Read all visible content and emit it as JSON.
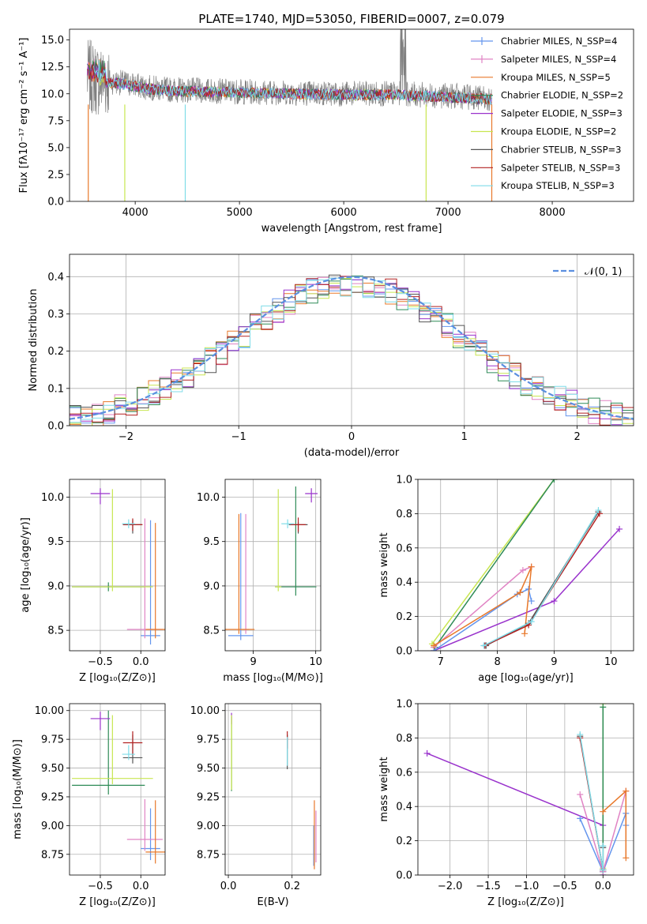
{
  "colors": {
    "chabrier_miles": "#6495ED",
    "salpeter_miles": "#E083C4",
    "kroupa_miles": "#E8782A",
    "chabrier_elodie": "#2E8B57",
    "salpeter_elodie": "#9932CC",
    "kroupa_elodie": "#C8E650",
    "chabrier_stelib": "#555555",
    "salpeter_stelib": "#B22222",
    "kroupa_stelib": "#7FDCE8",
    "data": "#808080"
  },
  "chart_data": [
    {
      "id": "spectrum",
      "type": "line",
      "title": "PLATE=1740, MJD=53050, FIBERID=0007, z=0.079",
      "xlabel": "wavelength [Angstrom, rest frame]",
      "ylabel": "Flux [fλ10⁻¹⁷ erg cm⁻² s⁻¹ A⁻¹]",
      "xlim": [
        3370,
        8780
      ],
      "ylim": [
        0,
        16
      ],
      "xticks": [
        "4000",
        "5000",
        "6000",
        "7000",
        "8000"
      ],
      "yticks": [
        "0.0",
        "2.5",
        "5.0",
        "7.5",
        "10.0",
        "12.5",
        "15.0"
      ],
      "legend_position": "top-right",
      "legend": [
        "Chabrier MILES, N_SSP=4",
        "Salpeter MILES, N_SSP=4",
        "Kroupa MILES, N_SSP=5",
        "Chabrier ELODIE, N_SSP=2",
        "Salpeter ELODIE, N_SSP=3",
        "Kroupa ELODIE, N_SSP=2",
        "Chabrier STELIB, N_SSP=3",
        "Salpeter STELIB, N_SSP=3",
        "Kroupa STELIB, N_SSP=3"
      ],
      "approximate_continuum": {
        "x": [
          3540,
          3700,
          3900,
          4100,
          4300,
          4600,
          5000,
          5500,
          6000,
          6500,
          7000,
          7400
        ],
        "y": [
          11.6,
          11.2,
          11.0,
          10.6,
          10.4,
          10.3,
          10.2,
          10.1,
          10.0,
          10.0,
          9.8,
          9.6
        ]
      }
    },
    {
      "id": "residuals",
      "type": "histogram",
      "xlabel": "(data-model)/error",
      "ylabel": "Normed distribution",
      "xlim": [
        -2.5,
        2.5
      ],
      "ylim": [
        0,
        0.46
      ],
      "xticks": [
        "−2",
        "−1",
        "0",
        "1",
        "2"
      ],
      "yticks": [
        "0.0",
        "0.1",
        "0.2",
        "0.3",
        "0.4"
      ],
      "legend_position": "top-right",
      "legend": [
        "𝒩(0, 1)"
      ],
      "bin_width": 0.1,
      "reference_curve": "normal(0,1)"
    },
    {
      "id": "age_vs_Z",
      "type": "errorbar",
      "xlabel": "Z [log₁₀(Z/Z⊙)]",
      "ylabel": "age  [log₁₀(age/yr)]",
      "xlim": [
        -0.88,
        0.3
      ],
      "ylim": [
        8.27,
        10.2
      ],
      "xticks": [
        "−0.5",
        "0.0"
      ],
      "xtick_values": [
        -0.5,
        0.0
      ],
      "yticks": [
        "8.5",
        "9.0",
        "9.5",
        "10.0"
      ],
      "ytick_values": [
        8.5,
        9.0,
        9.5,
        10.0
      ],
      "points": [
        {
          "model": "chabrier_miles",
          "x": 0.12,
          "y": 8.44,
          "xerr": 0.12,
          "yerr": [
            0.1,
            1.3
          ]
        },
        {
          "model": "salpeter_miles",
          "x": 0.05,
          "y": 8.51,
          "xerr": 0.22,
          "yerr": [
            0.1,
            1.25
          ]
        },
        {
          "model": "kroupa_miles",
          "x": 0.18,
          "y": 8.51,
          "xerr": 0.12,
          "yerr": [
            0.1,
            1.2
          ]
        },
        {
          "model": "chabrier_elodie",
          "x": -0.4,
          "y": 8.99,
          "xerr": 0.45,
          "yerr": [
            0.05,
            0.05
          ]
        },
        {
          "model": "salpeter_elodie",
          "x": -0.5,
          "y": 10.04,
          "xerr": 0.12,
          "yerr": [
            0.12,
            0.06
          ]
        },
        {
          "model": "kroupa_elodie",
          "x": -0.35,
          "y": 8.99,
          "xerr": 0.5,
          "yerr": [
            0.05,
            1.1
          ]
        },
        {
          "model": "chabrier_stelib",
          "x": -0.1,
          "y": 9.69,
          "xerr": 0.12,
          "yerr": [
            0.1,
            0.05
          ]
        },
        {
          "model": "salpeter_stelib",
          "x": -0.1,
          "y": 9.69,
          "xerr": 0.12,
          "yerr": [
            0.07,
            0.07
          ]
        },
        {
          "model": "kroupa_stelib",
          "x": -0.15,
          "y": 9.7,
          "xerr": 0.08,
          "yerr": [
            0.05,
            0.05
          ]
        }
      ]
    },
    {
      "id": "age_vs_mass",
      "type": "errorbar",
      "xlabel": "mass [log₁₀(M/M⊙)]",
      "ylabel": "",
      "xlim": [
        8.55,
        10.08
      ],
      "ylim": [
        8.27,
        10.2
      ],
      "xticks": [
        "9",
        "10"
      ],
      "xtick_values": [
        9,
        10
      ],
      "yticks": [
        "8.5",
        "9.0",
        "9.5",
        "10.0"
      ],
      "ytick_values": [
        8.5,
        9.0,
        9.5,
        10.0
      ],
      "points": [
        {
          "model": "chabrier_miles",
          "x": 8.8,
          "y": 8.44,
          "xerr": 0.2,
          "yerr": [
            0.05,
            1.38
          ]
        },
        {
          "model": "salpeter_miles",
          "x": 8.88,
          "y": 8.51,
          "xerr": 0.05,
          "yerr": [
            0.05,
            1.3
          ]
        },
        {
          "model": "kroupa_miles",
          "x": 8.77,
          "y": 8.51,
          "xerr": 0.25,
          "yerr": [
            0.05,
            1.3
          ]
        },
        {
          "model": "chabrier_elodie",
          "x": 9.68,
          "y": 8.99,
          "xerr": 0.33,
          "yerr": [
            0.1,
            1.13
          ]
        },
        {
          "model": "salpeter_elodie",
          "x": 9.93,
          "y": 10.04,
          "xerr": 0.1,
          "yerr": [
            0.1,
            0.06
          ]
        },
        {
          "model": "kroupa_elodie",
          "x": 9.4,
          "y": 8.99,
          "xerr": 0.05,
          "yerr": [
            0.05,
            1.1
          ]
        },
        {
          "model": "chabrier_stelib",
          "x": 9.72,
          "y": 9.69,
          "xerr": 0.15,
          "yerr": [
            0.1,
            0.03
          ]
        },
        {
          "model": "salpeter_stelib",
          "x": 9.72,
          "y": 9.69,
          "xerr": 0.12,
          "yerr": [
            0.08,
            0.08
          ]
        },
        {
          "model": "kroupa_stelib",
          "x": 9.55,
          "y": 9.7,
          "xerr": 0.1,
          "yerr": [
            0.05,
            0.05
          ]
        }
      ]
    },
    {
      "id": "mass_vs_Z",
      "type": "errorbar",
      "xlabel": "Z [log₁₀(Z/Z⊙)]",
      "ylabel": "mass [log₁₀(M/M⊙)]",
      "xlim": [
        -0.88,
        0.3
      ],
      "ylim": [
        8.57,
        10.06
      ],
      "xticks": [
        "−0.5",
        "0.0"
      ],
      "xtick_values": [
        -0.5,
        0.0
      ],
      "yticks": [
        "8.75",
        "9.00",
        "9.25",
        "9.50",
        "9.75",
        "10.00"
      ],
      "ytick_values": [
        8.75,
        9.0,
        9.25,
        9.5,
        9.75,
        10.0
      ],
      "points": [
        {
          "model": "chabrier_miles",
          "x": 0.12,
          "y": 8.8,
          "xerr": 0.12,
          "yerr": [
            0.1,
            0.35
          ]
        },
        {
          "model": "salpeter_miles",
          "x": 0.05,
          "y": 8.88,
          "xerr": 0.22,
          "yerr": [
            0.1,
            0.35
          ]
        },
        {
          "model": "kroupa_miles",
          "x": 0.18,
          "y": 8.77,
          "xerr": 0.12,
          "yerr": [
            0.1,
            0.45
          ]
        },
        {
          "model": "chabrier_elodie",
          "x": -0.4,
          "y": 9.35,
          "xerr": 0.45,
          "yerr": [
            0.08,
            0.65
          ]
        },
        {
          "model": "salpeter_elodie",
          "x": -0.5,
          "y": 9.93,
          "xerr": 0.12,
          "yerr": [
            0.1,
            0.06
          ]
        },
        {
          "model": "kroupa_elodie",
          "x": -0.35,
          "y": 9.41,
          "xerr": 0.5,
          "yerr": [
            0.05,
            0.55
          ]
        },
        {
          "model": "chabrier_stelib",
          "x": -0.1,
          "y": 9.59,
          "xerr": 0.12,
          "yerr": [
            0.05,
            0.2
          ]
        },
        {
          "model": "salpeter_stelib",
          "x": -0.1,
          "y": 9.72,
          "xerr": 0.12,
          "yerr": [
            0.1,
            0.1
          ]
        },
        {
          "model": "kroupa_stelib",
          "x": -0.15,
          "y": 9.62,
          "xerr": 0.08,
          "yerr": [
            0.05,
            0.08
          ]
        }
      ]
    },
    {
      "id": "mass_vs_ebv",
      "type": "errorbar",
      "xlabel": "E(B-V)",
      "ylabel": "",
      "xlim": [
        -0.01,
        0.29
      ],
      "ylim": [
        8.57,
        10.06
      ],
      "xticks": [
        "0.0",
        "0.2"
      ],
      "xtick_values": [
        0.0,
        0.2
      ],
      "yticks": [
        "8.75",
        "9.00",
        "9.25",
        "9.50",
        "9.75",
        "10.00"
      ],
      "ytick_values": [
        8.75,
        9.0,
        9.25,
        9.5,
        9.75,
        10.0
      ],
      "points": [
        {
          "model": "chabrier_miles",
          "x": 0.268,
          "y": 8.8,
          "xerr": 0.0,
          "yerr": [
            0.15,
            0.2
          ]
        },
        {
          "model": "salpeter_miles",
          "x": 0.275,
          "y": 8.88,
          "xerr": 0.0,
          "yerr": [
            0.2,
            0.25
          ]
        },
        {
          "model": "kroupa_miles",
          "x": 0.27,
          "y": 8.77,
          "xerr": 0.0,
          "yerr": [
            0.15,
            0.45
          ]
        },
        {
          "model": "chabrier_elodie",
          "x": 0.01,
          "y": 9.35,
          "xerr": 0.0,
          "yerr": [
            0.05,
            0.6
          ]
        },
        {
          "model": "salpeter_elodie",
          "x": 0.01,
          "y": 9.93,
          "xerr": 0.0,
          "yerr": [
            0.05,
            0.05
          ]
        },
        {
          "model": "kroupa_elodie",
          "x": 0.01,
          "y": 9.41,
          "xerr": 0.0,
          "yerr": [
            0.1,
            0.55
          ]
        },
        {
          "model": "chabrier_stelib",
          "x": 0.185,
          "y": 9.59,
          "xerr": 0.0,
          "yerr": [
            0.1,
            0.2
          ]
        },
        {
          "model": "salpeter_stelib",
          "x": 0.185,
          "y": 9.72,
          "xerr": 0.0,
          "yerr": [
            0.05,
            0.1
          ]
        },
        {
          "model": "kroupa_stelib",
          "x": 0.185,
          "y": 9.62,
          "xerr": 0.0,
          "yerr": [
            0.1,
            0.15
          ]
        }
      ]
    },
    {
      "id": "weight_vs_age",
      "type": "line",
      "xlabel": "age  [log₁₀(age/yr)]",
      "ylabel": "mass weight",
      "xlim": [
        6.6,
        10.4
      ],
      "ylim": [
        0,
        1.0
      ],
      "xticks": [
        "7",
        "8",
        "9",
        "10"
      ],
      "xtick_values": [
        7,
        8,
        9,
        10
      ],
      "yticks": [
        "0.0",
        "0.2",
        "0.4",
        "0.6",
        "0.8",
        "1.0"
      ],
      "ytick_values": [
        0,
        0.2,
        0.4,
        0.6,
        0.8,
        1.0
      ],
      "series": [
        {
          "model": "kroupa_elodie",
          "x": [
            6.85,
            9.0
          ],
          "y": [
            0.04,
            1.0
          ]
        },
        {
          "model": "chabrier_elodie",
          "x": [
            6.9,
            9.0
          ],
          "y": [
            0.02,
            1.0
          ]
        },
        {
          "model": "salpeter_elodie",
          "x": [
            6.88,
            9.0,
            10.15
          ],
          "y": [
            0.0,
            0.29,
            0.71
          ]
        },
        {
          "model": "salpeter_miles",
          "x": [
            6.88,
            8.45,
            8.6
          ],
          "y": [
            0.02,
            0.47,
            0.49
          ]
        },
        {
          "model": "chabrier_miles",
          "x": [
            6.88,
            8.35,
            8.55,
            8.6
          ],
          "y": [
            0.0,
            0.33,
            0.36,
            0.29
          ]
        },
        {
          "model": "kroupa_miles",
          "x": [
            6.88,
            8.4,
            8.6,
            8.48
          ],
          "y": [
            0.03,
            0.34,
            0.49,
            0.1
          ]
        },
        {
          "model": "chabrier_stelib",
          "x": [
            7.8,
            8.55,
            9.78
          ],
          "y": [
            0.03,
            0.16,
            0.81
          ]
        },
        {
          "model": "salpeter_stelib",
          "x": [
            7.78,
            8.55,
            9.8
          ],
          "y": [
            0.03,
            0.15,
            0.8
          ]
        },
        {
          "model": "kroupa_stelib",
          "x": [
            7.76,
            8.6,
            9.78
          ],
          "y": [
            0.03,
            0.17,
            0.82
          ]
        }
      ]
    },
    {
      "id": "weight_vs_Z",
      "type": "line",
      "xlabel": "Z [log₁₀(Z/Z⊙)]",
      "ylabel": "mass weight",
      "xlim": [
        -2.42,
        0.4
      ],
      "ylim": [
        0,
        1.0
      ],
      "xticks": [
        "−2.0",
        "−1.5",
        "−1.0",
        "−0.5",
        "0.0"
      ],
      "xtick_values": [
        -2.0,
        -1.5,
        -1.0,
        -0.5,
        0.0
      ],
      "yticks": [
        "0.0",
        "0.2",
        "0.4",
        "0.6",
        "0.8",
        "1.0"
      ],
      "ytick_values": [
        0,
        0.2,
        0.4,
        0.6,
        0.8,
        1.0
      ],
      "series": [
        {
          "model": "salpeter_elodie",
          "x": [
            -2.3,
            0.0,
            0.0
          ],
          "y": [
            0.71,
            0.29,
            0.0
          ]
        },
        {
          "model": "kroupa_elodie",
          "x": [
            0.0,
            0.0
          ],
          "y": [
            0.04,
            1.0
          ]
        },
        {
          "model": "chabrier_elodie",
          "x": [
            0.0,
            0.0
          ],
          "y": [
            0.02,
            0.98
          ]
        },
        {
          "model": "chabrier_miles",
          "x": [
            -0.3,
            0.0,
            0.3,
            0.3
          ],
          "y": [
            0.33,
            0.02,
            0.36,
            0.29
          ]
        },
        {
          "model": "salpeter_miles",
          "x": [
            -0.3,
            0.0,
            0.3
          ],
          "y": [
            0.47,
            0.02,
            0.49
          ]
        },
        {
          "model": "kroupa_miles",
          "x": [
            0.0,
            0.3,
            0.3
          ],
          "y": [
            0.37,
            0.49,
            0.1
          ]
        },
        {
          "model": "chabrier_stelib",
          "x": [
            -0.3,
            0.0,
            0.0
          ],
          "y": [
            0.81,
            0.03,
            0.16
          ]
        },
        {
          "model": "salpeter_stelib",
          "x": [
            -0.3,
            0.0
          ],
          "y": [
            0.8,
            0.03
          ]
        },
        {
          "model": "kroupa_stelib",
          "x": [
            -0.3,
            0.0,
            0.0
          ],
          "y": [
            0.82,
            0.03,
            0.17
          ]
        }
      ]
    }
  ]
}
